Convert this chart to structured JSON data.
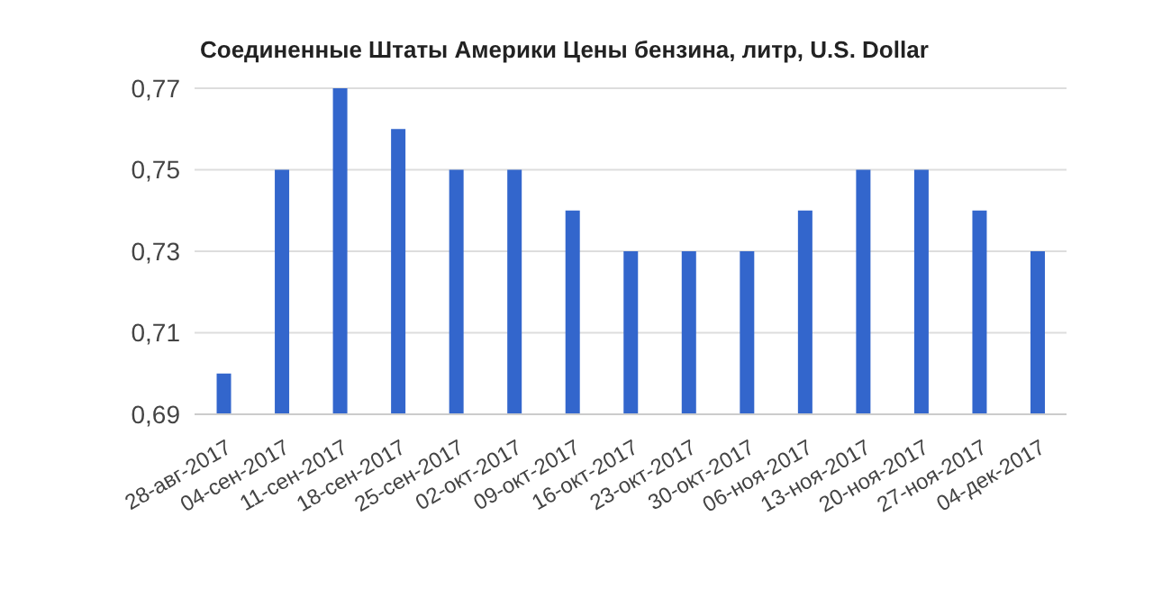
{
  "chart_data": {
    "type": "bar",
    "title": "Соединенные Штаты Америки Цены бензина, литр, U.S. Dollar",
    "categories": [
      "28-авг-2017",
      "04-сен-2017",
      "11-сен-2017",
      "18-сен-2017",
      "25-сен-2017",
      "02-окт-2017",
      "09-окт-2017",
      "16-окт-2017",
      "23-окт-2017",
      "30-окт-2017",
      "06-ноя-2017",
      "13-ноя-2017",
      "20-ноя-2017",
      "27-ноя-2017",
      "04-дек-2017"
    ],
    "values": [
      0.7,
      0.75,
      0.77,
      0.76,
      0.75,
      0.75,
      0.74,
      0.73,
      0.73,
      0.73,
      0.74,
      0.75,
      0.75,
      0.74,
      0.73
    ],
    "color": "#3366cc",
    "ylim": [
      0.69,
      0.77
    ],
    "yticks": [
      {
        "value": 0.69,
        "label": "0,69"
      },
      {
        "value": 0.71,
        "label": "0,71"
      },
      {
        "value": 0.73,
        "label": "0,73"
      },
      {
        "value": 0.75,
        "label": "0,75"
      },
      {
        "value": 0.77,
        "label": "0,77"
      }
    ],
    "grid": "y"
  }
}
